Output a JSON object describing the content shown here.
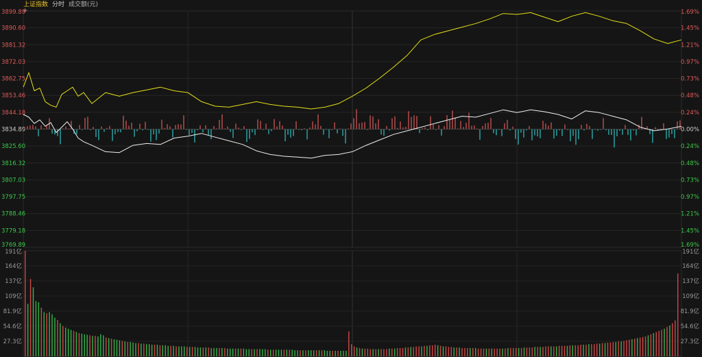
{
  "header": {
    "index_name": "上证指数",
    "mode": "分时",
    "volume_label": "成交额(元)"
  },
  "colors": {
    "background": "#151515",
    "grid": "#2a2a2a",
    "up": "#e05a5a",
    "down": "#2ec4c9",
    "vol_up": "#d04848",
    "vol_down": "#39b34a",
    "price_line": "#f0f0f0",
    "avg_line": "#e6e018",
    "green_text": "#3cc94a",
    "neutral_text": "#cfcfcf",
    "red_text": "#e05a5a"
  },
  "chart_data": [
    {
      "type": "line",
      "title": "上证指数",
      "ylim": [
        3769.89,
        3899.89
      ],
      "price_ticks": [
        "3899.89",
        "3890.60",
        "3881.32",
        "3872.03",
        "3862.75",
        "3853.46",
        "3844.18",
        "3834.89",
        "3825.60",
        "3816.32",
        "3807.03",
        "3797.75",
        "3788.46",
        "3779.18",
        "3769.89"
      ],
      "pct_ticks": [
        "1.69%",
        "1.45%",
        "1.21%",
        "0.97%",
        "0.73%",
        "0.48%",
        "0.24%",
        "0.00%",
        "0.24%",
        "0.48%",
        "0.73%",
        "0.97%",
        "1.21%",
        "1.45%",
        "1.69%"
      ],
      "base": 3834.89,
      "series": [
        {
          "key": "price",
          "x": [
            0,
            2,
            4,
            6,
            8,
            10,
            12,
            14,
            16,
            18,
            20,
            22,
            25,
            30,
            35,
            40,
            45,
            50,
            55,
            60,
            65,
            70,
            75,
            80,
            85,
            90,
            95,
            100,
            105,
            110,
            115,
            120,
            125,
            130,
            135,
            140,
            145,
            150,
            155,
            160,
            165,
            170,
            175,
            180,
            185,
            190,
            195,
            200,
            205,
            210,
            215,
            220,
            225,
            230,
            235,
            240
          ],
          "values": [
            3843.0,
            3841.5,
            3838.0,
            3840.0,
            3836.5,
            3838.5,
            3833.0,
            3836.0,
            3839.0,
            3835.0,
            3830.0,
            3828.0,
            3826.0,
            3822.5,
            3822.0,
            3826.0,
            3827.0,
            3826.5,
            3830.0,
            3831.0,
            3832.5,
            3830.5,
            3828.5,
            3826.5,
            3823.0,
            3821.0,
            3820.0,
            3819.5,
            3819.0,
            3820.5,
            3821.0,
            3822.5,
            3826.0,
            3829.0,
            3832.0,
            3834.0,
            3836.0,
            3838.0,
            3840.0,
            3842.0,
            3841.5,
            3843.5,
            3845.5,
            3844.0,
            3845.5,
            3844.5,
            3843.0,
            3840.5,
            3845.0,
            3844.0,
            3842.0,
            3840.0,
            3836.0,
            3834.0,
            3835.0,
            3836.5
          ]
        },
        {
          "key": "avg",
          "x": [
            0,
            2,
            4,
            6,
            8,
            10,
            12,
            14,
            16,
            18,
            20,
            22,
            25,
            30,
            35,
            40,
            45,
            50,
            55,
            60,
            65,
            70,
            75,
            80,
            85,
            90,
            95,
            100,
            105,
            110,
            115,
            120,
            125,
            130,
            135,
            140,
            145,
            150,
            155,
            160,
            165,
            170,
            175,
            180,
            185,
            190,
            195,
            200,
            205,
            210,
            215,
            220,
            225,
            230,
            235,
            240
          ],
          "values": [
            3858.0,
            3866.0,
            3856.0,
            3857.5,
            3850.0,
            3848.0,
            3847.0,
            3854.0,
            3856.0,
            3858.0,
            3853.0,
            3855.0,
            3849.0,
            3855.0,
            3853.0,
            3855.0,
            3856.5,
            3858.0,
            3856.0,
            3855.0,
            3850.0,
            3847.5,
            3847.0,
            3848.5,
            3850.0,
            3848.5,
            3847.5,
            3847.0,
            3846.0,
            3847.0,
            3849.0,
            3853.0,
            3857.5,
            3863.0,
            3869.0,
            3875.5,
            3884.0,
            3887.0,
            3889.0,
            3891.0,
            3893.0,
            3895.5,
            3898.5,
            3898.0,
            3899.0,
            3896.5,
            3894.0,
            3897.0,
            3899.0,
            3897.0,
            3894.5,
            3893.0,
            3889.0,
            3884.5,
            3882.0,
            3884.0
          ]
        }
      ]
    },
    {
      "type": "bar",
      "title": "成交额(元)",
      "ylim": [
        0,
        191
      ],
      "tick_labels": [
        "191亿",
        "164亿",
        "137亿",
        "109亿",
        "81.9亿",
        "54.6亿",
        "27.3亿"
      ],
      "right_tick_labels": [
        "191亿",
        "164亿",
        "137亿",
        "109亿",
        "81.9亿",
        "54.6亿",
        "27.3亿"
      ],
      "values": [
        191,
        95,
        140,
        125,
        100,
        98,
        88,
        80,
        78,
        80,
        76,
        70,
        66,
        60,
        55,
        52,
        50,
        48,
        46,
        44,
        42,
        41,
        40,
        39,
        38,
        37,
        37,
        36,
        40,
        38,
        34,
        33,
        32,
        31,
        30,
        29,
        28,
        27,
        26,
        26,
        25,
        24,
        24,
        23,
        23,
        22,
        22,
        21,
        21,
        21,
        20,
        20,
        20,
        19,
        19,
        19,
        18,
        18,
        18,
        18,
        17,
        17,
        17,
        17,
        16,
        16,
        16,
        16,
        16,
        15,
        15,
        15,
        15,
        15,
        15,
        14,
        14,
        14,
        14,
        14,
        14,
        14,
        13,
        13,
        13,
        13,
        13,
        13,
        13,
        13,
        12,
        12,
        12,
        12,
        12,
        12,
        12,
        12,
        12,
        12,
        11,
        11,
        11,
        11,
        11,
        11,
        11,
        11,
        11,
        11,
        11,
        11,
        10,
        10,
        10,
        10,
        10,
        10,
        10,
        10,
        45,
        22,
        18,
        16,
        15,
        14,
        14,
        14,
        13,
        13,
        13,
        13,
        13,
        13,
        13,
        14,
        14,
        14,
        15,
        15,
        15,
        16,
        16,
        17,
        17,
        18,
        18,
        18,
        19,
        19,
        20,
        20,
        21,
        20,
        19,
        18,
        18,
        17,
        17,
        16,
        16,
        16,
        15,
        15,
        15,
        15,
        15,
        15,
        14,
        14,
        14,
        14,
        14,
        14,
        14,
        14,
        14,
        14,
        14,
        15,
        15,
        15,
        15,
        15,
        15,
        16,
        16,
        16,
        16,
        17,
        17,
        17,
        17,
        18,
        18,
        18,
        18,
        18,
        19,
        19,
        19,
        19,
        20,
        20,
        20,
        20,
        21,
        21,
        21,
        22,
        22,
        22,
        23,
        23,
        24,
        24,
        25,
        25,
        26,
        26,
        27,
        27,
        28,
        29,
        30,
        31,
        32,
        33,
        34,
        35,
        36,
        38,
        40,
        42,
        44,
        46,
        48,
        50,
        53,
        56,
        60,
        65,
        150
      ]
    }
  ]
}
